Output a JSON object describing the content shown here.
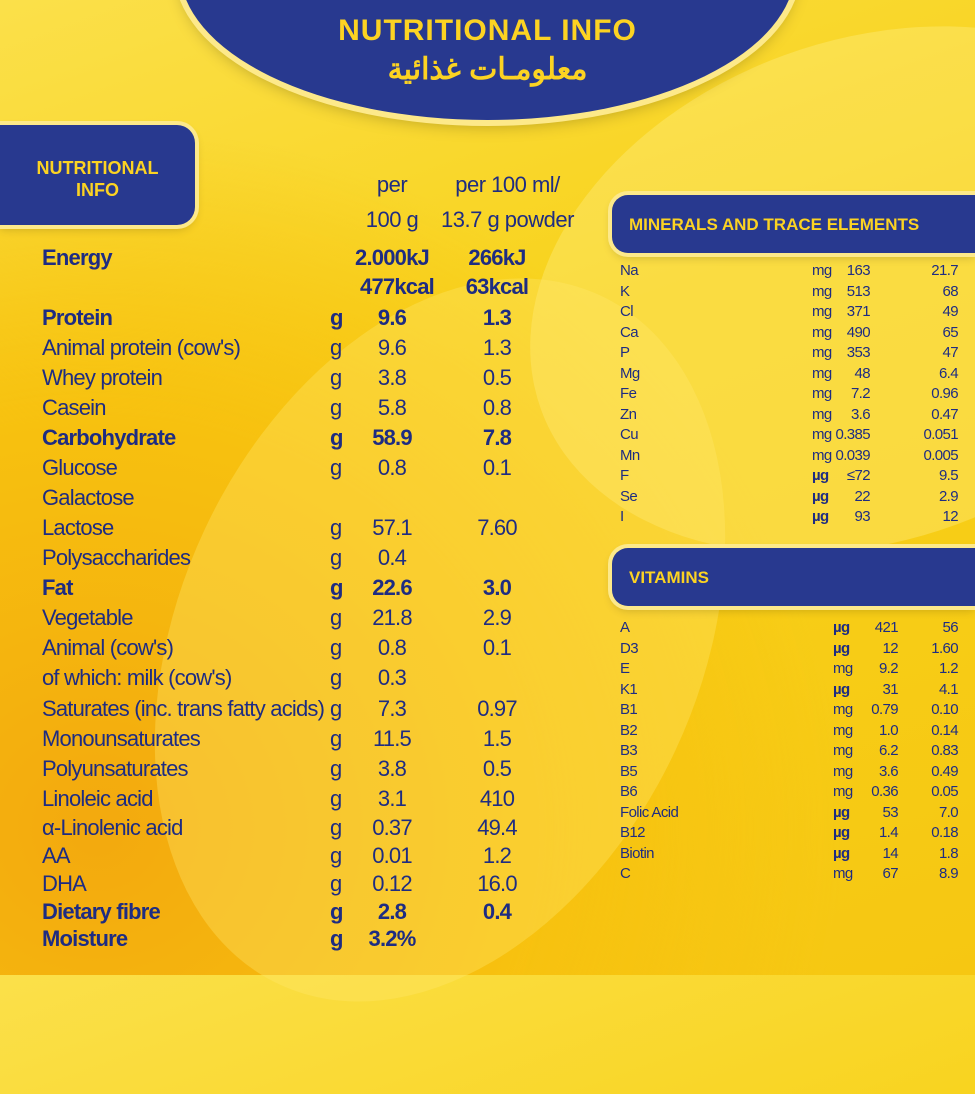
{
  "banner": {
    "title": "NUTRITIONAL INFO",
    "title_ar": "معلومـات غذائية"
  },
  "tab": {
    "line1": "NUTRITIONAL",
    "line2": "INFO"
  },
  "columns": {
    "per100g_1": "per",
    "per100g_2": "100 g",
    "per100ml_1": "per 100 ml/",
    "per100ml_2": "13.7 g powder"
  },
  "energy": {
    "label": "Energy",
    "kj_100g": "2.000kJ",
    "kcal_100g": "477kcal",
    "kj_100ml": "266kJ",
    "kcal_100ml": "63kcal"
  },
  "nutrients": [
    {
      "label": "Protein",
      "unit": "g",
      "per100g": "9.6",
      "per100ml": "1.3",
      "bold": true
    },
    {
      "label": "Animal protein (cow's)",
      "unit": "g",
      "per100g": "9.6",
      "per100ml": "1.3"
    },
    {
      "label": "Whey protein",
      "unit": "g",
      "per100g": "3.8",
      "per100ml": "0.5"
    },
    {
      "label": "Casein",
      "unit": "g",
      "per100g": "5.8",
      "per100ml": "0.8"
    },
    {
      "label": "Carbohydrate",
      "unit": "g",
      "per100g": "58.9",
      "per100ml": "7.8",
      "bold": true
    },
    {
      "label": "Glucose",
      "unit": "g",
      "per100g": "0.8",
      "per100ml": "0.1"
    },
    {
      "label": "Galactose",
      "unit": "",
      "per100g": "",
      "per100ml": ""
    },
    {
      "label": "Lactose",
      "unit": "g",
      "per100g": "57.1",
      "per100ml": "7.60"
    },
    {
      "label": "Polysaccharides",
      "unit": "g",
      "per100g": "0.4",
      "per100ml": ""
    },
    {
      "label": "Fat",
      "unit": "g",
      "per100g": "22.6",
      "per100ml": "3.0",
      "bold": true
    },
    {
      "label": "Vegetable",
      "unit": "g",
      "per100g": "21.8",
      "per100ml": "2.9"
    },
    {
      "label": "Animal (cow's)",
      "unit": "g",
      "per100g": "0.8",
      "per100ml": "0.1"
    },
    {
      "label": "of which: milk (cow's)",
      "unit": "g",
      "per100g": "0.3",
      "per100ml": ""
    },
    {
      "label": "Saturates (inc. trans fatty acids)",
      "unit": "g",
      "per100g": "7.3",
      "per100ml": "0.97"
    },
    {
      "label": "Monounsaturates",
      "unit": "g",
      "per100g": "11.5",
      "per100ml": "1.5"
    },
    {
      "label": "Polyunsaturates",
      "unit": "g",
      "per100g": "3.8",
      "per100ml": "0.5"
    },
    {
      "label": "Linoleic acid",
      "unit": "g",
      "per100g": "3.1",
      "per100ml": "410"
    },
    {
      "label": "α-Linolenic acid",
      "unit": "g",
      "per100g": "0.37",
      "per100ml": "49.4"
    },
    {
      "label": "AA",
      "unit": "g",
      "per100g": "0.01",
      "per100ml": "1.2"
    },
    {
      "label": "DHA",
      "unit": "g",
      "per100g": "0.12",
      "per100ml": "16.0"
    },
    {
      "label": "Dietary fibre",
      "unit": "g",
      "per100g": "2.8",
      "per100ml": "0.4",
      "bold": true
    },
    {
      "label": "Moisture",
      "unit": "g",
      "per100g": "3.2%",
      "per100ml": "",
      "bold": true
    }
  ],
  "minerals": {
    "title": "MINERALS AND TRACE ELEMENTS",
    "rows": [
      {
        "label": "Na",
        "unit": "mg",
        "per100g": "163",
        "per100ml": "21.7"
      },
      {
        "label": "K",
        "unit": "mg",
        "per100g": "513",
        "per100ml": "68"
      },
      {
        "label": "Cl",
        "unit": "mg",
        "per100g": "371",
        "per100ml": "49"
      },
      {
        "label": "Ca",
        "unit": "mg",
        "per100g": "490",
        "per100ml": "65"
      },
      {
        "label": "P",
        "unit": "mg",
        "per100g": "353",
        "per100ml": "47"
      },
      {
        "label": "Mg",
        "unit": "mg",
        "per100g": "48",
        "per100ml": "6.4"
      },
      {
        "label": "Fe",
        "unit": "mg",
        "per100g": "7.2",
        "per100ml": "0.96"
      },
      {
        "label": "Zn",
        "unit": "mg",
        "per100g": "3.6",
        "per100ml": "0.47"
      },
      {
        "label": "Cu",
        "unit": "mg",
        "per100g": "0.385",
        "per100ml": "0.051"
      },
      {
        "label": "Mn",
        "unit": "mg",
        "per100g": "0.039",
        "per100ml": "0.005"
      },
      {
        "label": "F",
        "unit": "µg",
        "per100g": "≤72",
        "per100ml": "9.5"
      },
      {
        "label": "Se",
        "unit": "µg",
        "per100g": "22",
        "per100ml": "2.9"
      },
      {
        "label": "I",
        "unit": "µg",
        "per100g": "93",
        "per100ml": "12"
      }
    ]
  },
  "vitamins": {
    "title": "VITAMINS",
    "rows": [
      {
        "label": "A",
        "unit": "µg",
        "per100g": "421",
        "per100ml": "56"
      },
      {
        "label": "D3",
        "unit": "µg",
        "per100g": "12",
        "per100ml": "1.60"
      },
      {
        "label": "E",
        "unit": "mg",
        "per100g": "9.2",
        "per100ml": "1.2"
      },
      {
        "label": "K1",
        "unit": "µg",
        "per100g": "31",
        "per100ml": "4.1"
      },
      {
        "label": "B1",
        "unit": "mg",
        "per100g": "0.79",
        "per100ml": "0.10"
      },
      {
        "label": "B2",
        "unit": "mg",
        "per100g": "1.0",
        "per100ml": "0.14"
      },
      {
        "label": "B3",
        "unit": "mg",
        "per100g": "6.2",
        "per100ml": "0.83"
      },
      {
        "label": "B5",
        "unit": "mg",
        "per100g": "3.6",
        "per100ml": "0.49"
      },
      {
        "label": "B6",
        "unit": "mg",
        "per100g": "0.36",
        "per100ml": "0.05"
      },
      {
        "label": "Folic Acid",
        "unit": "µg",
        "per100g": "53",
        "per100ml": "7.0"
      },
      {
        "label": "B12",
        "unit": "µg",
        "per100g": "1.4",
        "per100ml": "0.18"
      },
      {
        "label": "Biotin",
        "unit": "µg",
        "per100g": "14",
        "per100ml": "1.8"
      },
      {
        "label": "C",
        "unit": "mg",
        "per100g": "67",
        "per100ml": "8.9"
      }
    ]
  },
  "colors": {
    "blue": "#28398f",
    "yellow": "#f8d21a",
    "text": "#1e2c82",
    "heading_text": "#fcd322"
  }
}
